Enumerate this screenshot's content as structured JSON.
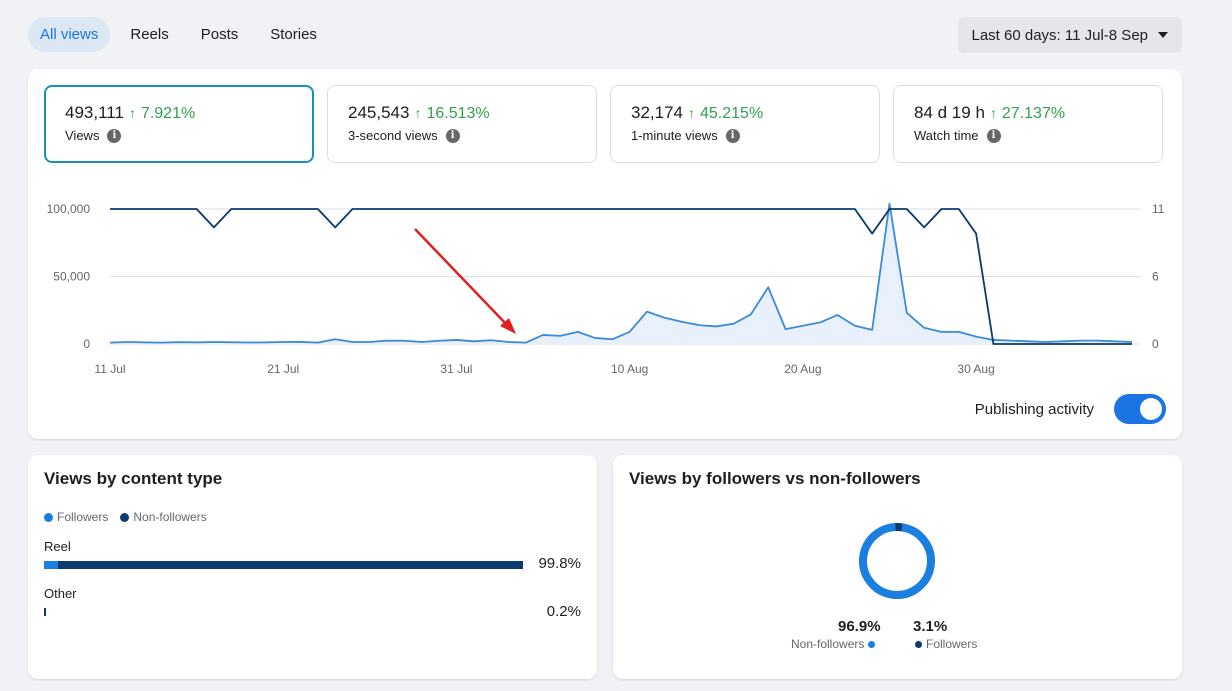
{
  "tabs": [
    {
      "label": "All views",
      "active": true
    },
    {
      "label": "Reels",
      "active": false
    },
    {
      "label": "Posts",
      "active": false
    },
    {
      "label": "Stories",
      "active": false
    }
  ],
  "date_range": "Last 60 days: 11 Jul-8 Sep",
  "metrics": [
    {
      "value": "493,111",
      "change": "7.921%",
      "label": "Views",
      "active": true
    },
    {
      "value": "245,543",
      "change": "16.513%",
      "label": "3-second views",
      "active": false
    },
    {
      "value": "32,174",
      "change": "45.215%",
      "label": "1-minute views",
      "active": false
    },
    {
      "value": "84 d 19 h",
      "change": "27.137%",
      "label": "Watch time",
      "active": false
    }
  ],
  "colors": {
    "accent": "#1b74e4",
    "positive": "#31a24c",
    "followers": "#1a7fe0",
    "non_followers": "#0a3a6e",
    "annotation": "#e02020"
  },
  "chart_data": {
    "type": "line",
    "x_ticks": [
      "11 Jul",
      "21 Jul",
      "31 Jul",
      "10 Aug",
      "20 Aug",
      "30 Aug"
    ],
    "y_left_ticks": [
      "100,000",
      "50,000",
      "0"
    ],
    "y_right_ticks": [
      "11",
      "6",
      "0"
    ],
    "y_left_range": [
      0,
      100000
    ],
    "y_right_range": [
      0,
      11
    ],
    "grid": true,
    "series": [
      {
        "axis": "left",
        "fill": true,
        "values": [
          1000,
          1500,
          1200,
          1000,
          1400,
          1200,
          1500,
          1300,
          1100,
          1200,
          1500,
          1600,
          1000,
          3500,
          1500,
          1500,
          2500,
          2400,
          1500,
          2400,
          3000,
          2000,
          2800,
          1500,
          1000,
          6700,
          6000,
          9000,
          4500,
          3500,
          9000,
          24000,
          19500,
          16500,
          14000,
          13000,
          15000,
          22000,
          42000,
          11000,
          13500,
          16000,
          21500,
          13500,
          10500,
          104000,
          23000,
          12000,
          9000,
          9000,
          5500,
          3000,
          2500,
          2000,
          1500,
          2000,
          2500,
          2500,
          2000,
          1500
        ]
      },
      {
        "axis": "right",
        "fill": false,
        "values": [
          11,
          11,
          11,
          11,
          11,
          11,
          9.5,
          11,
          11,
          11,
          11,
          11,
          11,
          9.5,
          11,
          11,
          11,
          11,
          11,
          11,
          11,
          11,
          11,
          11,
          11,
          11,
          11,
          11,
          11,
          11,
          11,
          11,
          11,
          11,
          11,
          11,
          11,
          11,
          11,
          11,
          11,
          11,
          11,
          11,
          9,
          11,
          11,
          9.5,
          11,
          11,
          9,
          0,
          0,
          0,
          0,
          0,
          0,
          0,
          0,
          0
        ]
      }
    ]
  },
  "publishing_activity": {
    "label": "Publishing activity",
    "on": true
  },
  "content_type": {
    "title": "Views by content type",
    "legend": [
      "Followers",
      "Non-followers"
    ],
    "rows": [
      {
        "label": "Reel",
        "pct": "99.8%",
        "followers_share": 0.03,
        "non_followers_share": 0.97,
        "scale": 1.0
      },
      {
        "label": "Other",
        "pct": "0.2%",
        "followers_share": 0.0,
        "non_followers_share": 1.0,
        "scale": 0.002
      }
    ]
  },
  "followers": {
    "title": "Views by followers vs non-followers",
    "non_followers_pct": "96.9%",
    "non_followers_label": "Non-followers",
    "followers_pct": "3.1%",
    "followers_label": "Followers",
    "non_followers_value": 96.9,
    "followers_value": 3.1
  }
}
